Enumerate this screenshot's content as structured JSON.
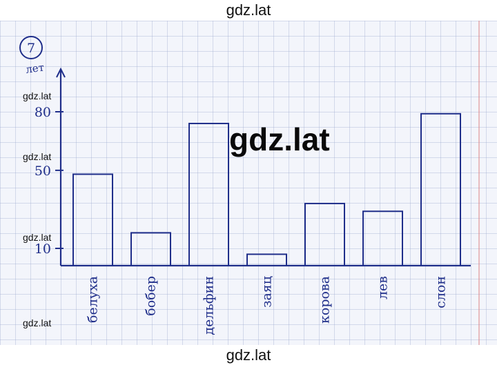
{
  "watermarks": {
    "top": "gdz.lat",
    "bottom": "gdz.lat",
    "center": "gdz.lat",
    "side": [
      "gdz.lat",
      "gdz.lat",
      "gdz.lat",
      "gdz.lat"
    ]
  },
  "task_number": "7",
  "colors": {
    "ink": "#1f2e8a",
    "paper": "#f3f5fb"
  },
  "chart_data": {
    "type": "bar",
    "ylabel": "лет",
    "yticks": [
      10,
      50,
      80
    ],
    "ylim": [
      0,
      100
    ],
    "categories": [
      "белуха",
      "бобер",
      "дельфин",
      "заяц",
      "корова",
      "лев",
      "слон"
    ],
    "values": [
      48,
      18,
      74,
      7,
      33,
      29,
      79
    ]
  }
}
